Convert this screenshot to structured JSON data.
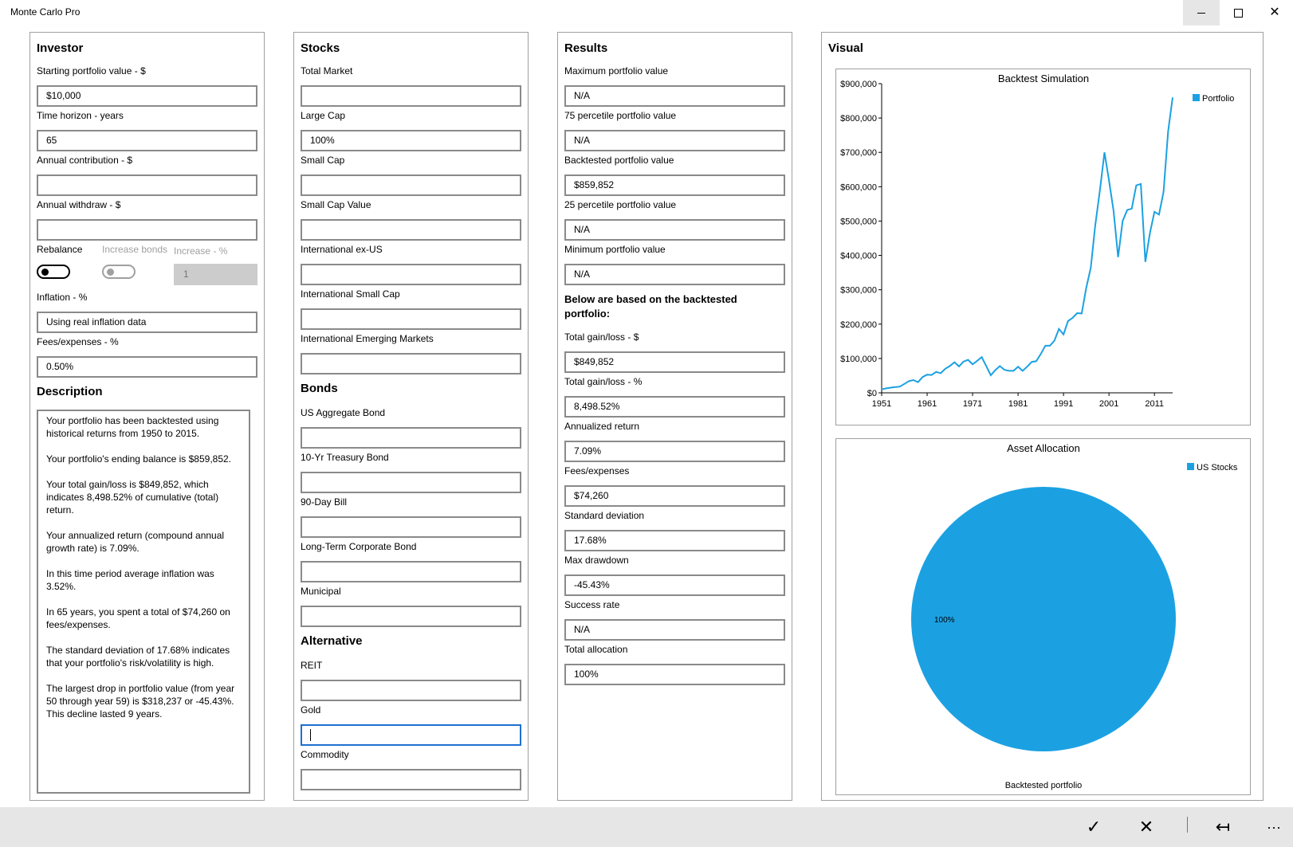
{
  "app": {
    "title": "Monte Carlo Pro"
  },
  "investor": {
    "title": "Investor",
    "starting_label": "Starting portfolio value - $",
    "starting_value": "$10,000",
    "horizon_label": "Time horizon - years",
    "horizon_value": "65",
    "contribution_label": "Annual contribution - $",
    "contribution_value": "",
    "withdraw_label": "Annual withdraw - $",
    "withdraw_value": "",
    "rebalance_label": "Rebalance",
    "increase_bonds_label": "Increase bonds",
    "increase_pct_label": "Increase - %",
    "increase_pct_value": "1",
    "inflation_label": "Inflation - %",
    "inflation_value": "Using real inflation data",
    "fees_label": "Fees/expenses - %",
    "fees_value": "0.50%",
    "description_title": "Description",
    "description": [
      "Your portfolio has been backtested using historical returns from 1950 to 2015.",
      "Your portfolio's ending balance is $859,852.",
      "Your total gain/loss is $849,852, which indicates 8,498.52% of cumulative (total) return.",
      "Your annualized return (compound annual growth rate) is 7.09%.",
      "In this time period average inflation was 3.52%.",
      "In 65 years, you spent a total of $74,260 on fees/expenses.",
      "The standard deviation of 17.68% indicates that your portfolio's risk/volatility is high.",
      "The largest drop in portfolio value (from year 50 through year 59) is $318,237 or -45.43%. This decline lasted 9 years."
    ]
  },
  "stocks": {
    "title": "Stocks",
    "total_market_label": "Total Market",
    "total_market_value": "",
    "large_cap_label": "Large Cap",
    "large_cap_value": "100%",
    "small_cap_label": "Small Cap",
    "small_cap_value": "",
    "small_cap_value_label": "Small Cap Value",
    "small_cap_value_value": "",
    "intl_label": "International ex-US",
    "intl_value": "",
    "intl_small_label": "International Small Cap",
    "intl_small_value": "",
    "intl_em_label": "International Emerging Markets",
    "intl_em_value": "",
    "bonds_title": "Bonds",
    "agg_label": "US Aggregate Bond",
    "agg_value": "",
    "treasury_label": "10-Yr Treasury Bond",
    "treasury_value": "",
    "bill_label": "90-Day Bill",
    "bill_value": "",
    "corp_label": "Long-Term Corporate Bond",
    "corp_value": "",
    "muni_label": "Municipal",
    "muni_value": "",
    "alt_title": "Alternative",
    "reit_label": "REIT",
    "reit_value": "",
    "gold_label": "Gold",
    "gold_value": "",
    "commodity_label": "Commodity",
    "commodity_value": ""
  },
  "results": {
    "title": "Results",
    "max_label": "Maximum portfolio value",
    "max_value": "N/A",
    "p75_label": "75 percetile portfolio value",
    "p75_value": "N/A",
    "backtested_label": "Backtested portfolio value",
    "backtested_value": "$859,852",
    "p25_label": "25 percetile portfolio value",
    "p25_value": "N/A",
    "min_label": "Minimum portfolio value",
    "min_value": "N/A",
    "below_heading": "Below are based on the backtested portfolio:",
    "gain_label": "Total gain/loss - $",
    "gain_value": "$849,852",
    "gain_pct_label": "Total gain/loss - %",
    "gain_pct_value": "8,498.52%",
    "annualized_label": "Annualized return",
    "annualized_value": "7.09%",
    "fees_label": "Fees/expenses",
    "fees_value": "$74,260",
    "stddev_label": "Standard deviation",
    "stddev_value": "17.68%",
    "drawdown_label": "Max drawdown",
    "drawdown_value": "-45.43%",
    "success_label": "Success rate",
    "success_value": "N/A",
    "allocation_label": "Total allocation",
    "allocation_value": "100%"
  },
  "visual": {
    "title": "Visual"
  },
  "chart_data": [
    {
      "type": "line",
      "title": "Backtest Simulation",
      "xlabel": "",
      "ylabel": "",
      "legend_position": "top-right",
      "x_ticks": [
        "1951",
        "1961",
        "1971",
        "1981",
        "1991",
        "2001",
        "2011"
      ],
      "y_ticks": [
        "$0",
        "$100,000",
        "$200,000",
        "$300,000",
        "$400,000",
        "$500,000",
        "$600,000",
        "$700,000",
        "$800,000",
        "$900,000"
      ],
      "xlim": [
        1951,
        2015
      ],
      "ylim": [
        0,
        900000
      ],
      "series": [
        {
          "name": "Portfolio",
          "color": "#1ba1e2",
          "x": [
            1951,
            1952,
            1953,
            1954,
            1955,
            1956,
            1957,
            1958,
            1959,
            1960,
            1961,
            1962,
            1963,
            1964,
            1965,
            1966,
            1967,
            1968,
            1969,
            1970,
            1971,
            1972,
            1973,
            1974,
            1975,
            1976,
            1977,
            1978,
            1979,
            1980,
            1981,
            1982,
            1983,
            1984,
            1985,
            1986,
            1987,
            1988,
            1989,
            1990,
            1991,
            1992,
            1993,
            1994,
            1995,
            1996,
            1997,
            1998,
            1999,
            2000,
            2001,
            2002,
            2003,
            2004,
            2005,
            2006,
            2007,
            2008,
            2009,
            2010,
            2011,
            2012,
            2013,
            2014,
            2015
          ],
          "values": [
            10000,
            13000,
            15000,
            17000,
            18000,
            26000,
            34000,
            37000,
            31000,
            46000,
            53000,
            52000,
            61000,
            57000,
            70000,
            78000,
            89000,
            77000,
            91000,
            96000,
            83000,
            93000,
            104000,
            78000,
            51000,
            66000,
            78000,
            67000,
            64000,
            64000,
            76000,
            64000,
            76000,
            90000,
            92000,
            113000,
            137000,
            137000,
            152000,
            186000,
            170000,
            209000,
            218000,
            232000,
            231000,
            305000,
            364000,
            489000,
            590000,
            700000,
            618000,
            530000,
            395000,
            500000,
            532000,
            536000,
            604000,
            608000,
            381000,
            465000,
            527000,
            519000,
            585000,
            760000,
            859852
          ]
        }
      ]
    },
    {
      "type": "pie",
      "title": "Asset Allocation",
      "xlabel": "Backtested portfolio",
      "legend_position": "top-right",
      "categories": [
        "US Stocks"
      ],
      "values": [
        100
      ],
      "labels": [
        "100%"
      ],
      "colors": [
        "#1ba1e2"
      ]
    }
  ]
}
